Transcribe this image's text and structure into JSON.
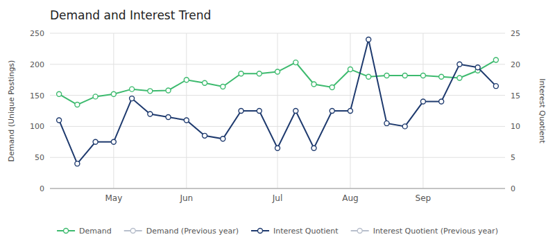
{
  "chart_data": {
    "type": "line",
    "title": "Demand and Interest Trend",
    "ylabel": "Demand (Unique Postings)",
    "y2label": "Interest Quotient",
    "categories": [
      null,
      null,
      null,
      "May",
      null,
      null,
      null,
      "Jun",
      null,
      null,
      null,
      null,
      "Jul",
      null,
      null,
      null,
      "Aug",
      null,
      null,
      null,
      "Sep",
      null,
      null,
      null,
      null
    ],
    "ylim": [
      0,
      250
    ],
    "yticks": [
      0,
      50,
      100,
      150,
      200,
      250
    ],
    "y2lim": [
      0,
      25
    ],
    "y2ticks": [
      0,
      5,
      10,
      15,
      20,
      25
    ],
    "grid": true,
    "legend": "bottom",
    "marker": "circle",
    "line_style": "solid",
    "series": [
      {
        "name": "Demand",
        "color": "#3dba6e",
        "values": [
          152,
          135,
          148,
          152,
          160,
          157,
          158,
          175,
          170,
          164,
          185,
          185,
          188,
          203,
          168,
          163,
          192,
          180,
          182,
          182,
          182,
          180,
          178,
          190,
          207
        ]
      },
      {
        "name": "Demand (Previous year)",
        "color": "#b8bfcc",
        "values": [
          null,
          null,
          null,
          null,
          null,
          null,
          null,
          null,
          null,
          null,
          null,
          null,
          null,
          null,
          null,
          null,
          null,
          null,
          null,
          null,
          null,
          null,
          null,
          null,
          null
        ]
      },
      {
        "name": "Interest Quotient",
        "color": "#1e3a6e",
        "axis": "y2",
        "values": [
          11.0,
          4.0,
          7.5,
          7.5,
          14.5,
          12.0,
          11.5,
          11.0,
          8.5,
          8.0,
          12.5,
          12.5,
          6.5,
          12.5,
          6.5,
          12.5,
          12.5,
          24.0,
          10.5,
          10.0,
          14.0,
          14.0,
          20.0,
          19.5,
          16.5
        ]
      },
      {
        "name": "Interest Quotient (Previous year)",
        "color": "#b8bfcc",
        "axis": "y2",
        "values": [
          null,
          null,
          null,
          null,
          null,
          null,
          null,
          null,
          null,
          null,
          null,
          null,
          null,
          null,
          null,
          null,
          null,
          null,
          null,
          null,
          null,
          null,
          null,
          null,
          null
        ]
      }
    ]
  }
}
